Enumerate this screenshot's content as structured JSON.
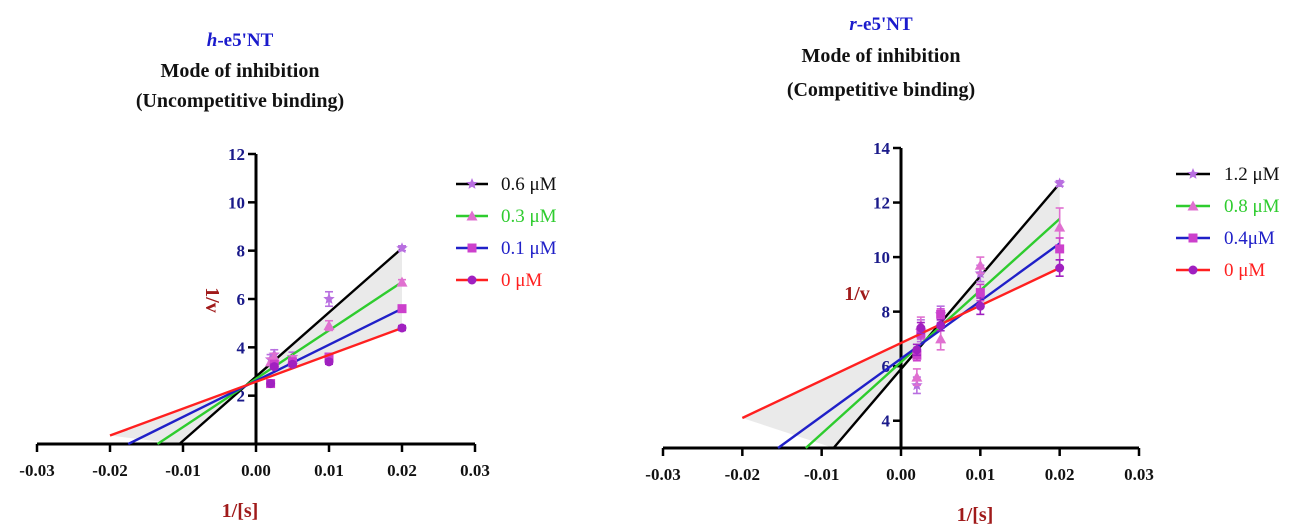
{
  "chart_data": [
    {
      "type": "line",
      "title_prefix": "h",
      "title_suffix": "-e5'NT",
      "subtitle": "Mode of inhibition",
      "subtitle2": "(Uncompetitive binding)",
      "xlabel": "1/[s]",
      "ylabel": "1/v",
      "xlim": [
        -0.03,
        0.03
      ],
      "ylim": [
        0,
        12
      ],
      "xticks": [
        "-0.03",
        "-0.02",
        "-0.01",
        "0.00",
        "0.01",
        "0.02",
        "0.03"
      ],
      "yticks": [
        "2",
        "4",
        "6",
        "8",
        "10",
        "12"
      ],
      "legend_position": "right",
      "series": [
        {
          "name": "0.6  μM",
          "color": "#000000",
          "marker_color": "#b86fe0",
          "marker": "star",
          "line": [
            [
              -0.0105,
              0.0
            ],
            [
              0.02,
              8.1
            ]
          ],
          "points": [
            [
              0.002,
              3.5
            ],
            [
              0.0025,
              3.7
            ],
            [
              0.005,
              3.6
            ],
            [
              0.01,
              6.0
            ],
            [
              0.02,
              8.1
            ]
          ],
          "errors": [
            0.2,
            0.2,
            0.2,
            0.3,
            0.1
          ]
        },
        {
          "name": "0.3  μM",
          "color": "#2ecc2e",
          "marker_color": "#e070d0",
          "marker": "triangle",
          "line": [
            [
              -0.0135,
              0.0
            ],
            [
              0.02,
              6.7
            ]
          ],
          "points": [
            [
              0.002,
              3.4
            ],
            [
              0.0025,
              3.6
            ],
            [
              0.005,
              3.5
            ],
            [
              0.01,
              4.9
            ],
            [
              0.02,
              6.7
            ]
          ],
          "errors": [
            0.15,
            0.15,
            0.15,
            0.2,
            0.1
          ]
        },
        {
          "name": "0.1 μM",
          "color": "#2020c8",
          "marker_color": "#cc40cc",
          "marker": "square",
          "line": [
            [
              -0.0175,
              0.0
            ],
            [
              0.02,
              5.6
            ]
          ],
          "points": [
            [
              0.002,
              2.5
            ],
            [
              0.0025,
              3.3
            ],
            [
              0.005,
              3.4
            ],
            [
              0.01,
              3.6
            ],
            [
              0.02,
              5.6
            ]
          ],
          "errors": [
            0.15,
            0.15,
            0.15,
            0.15,
            0.1
          ]
        },
        {
          "name": "0 μM",
          "color": "#ff2020",
          "marker_color": "#a020c0",
          "marker": "circle",
          "line": [
            [
              -0.02,
              0.35
            ],
            [
              0.02,
              4.8
            ]
          ],
          "points": [
            [
              0.002,
              2.5
            ],
            [
              0.0025,
              3.2
            ],
            [
              0.005,
              3.3
            ],
            [
              0.01,
              3.4
            ],
            [
              0.02,
              4.8
            ]
          ],
          "errors": [
            0.1,
            0.1,
            0.1,
            0.1,
            0.1
          ]
        }
      ]
    },
    {
      "type": "line",
      "title_prefix": "r",
      "title_suffix": "-e5'NT",
      "subtitle": "Mode of inhibition",
      "subtitle2": "(Competitive binding)",
      "xlabel": "1/[s]",
      "ylabel": "1/v",
      "xlim": [
        -0.03,
        0.03
      ],
      "ylim": [
        3,
        14
      ],
      "xticks": [
        "-0.03",
        "-0.02",
        "-0.01",
        "0.00",
        "0.01",
        "0.02",
        "0.03"
      ],
      "yticks": [
        "4",
        "6",
        "8",
        "10",
        "12",
        "14"
      ],
      "legend_position": "right",
      "series": [
        {
          "name": "1.2 μM",
          "color": "#000000",
          "marker_color": "#b86fe0",
          "marker": "star",
          "line": [
            [
              -0.0085,
              3.0
            ],
            [
              0.02,
              12.7
            ]
          ],
          "points": [
            [
              0.002,
              5.3
            ],
            [
              0.0025,
              7.3
            ],
            [
              0.005,
              7.9
            ],
            [
              0.01,
              9.4
            ],
            [
              0.02,
              12.7
            ]
          ],
          "errors": [
            0.3,
            0.4,
            0.3,
            0.3,
            0.1
          ]
        },
        {
          "name": "0.8 μM",
          "color": "#2ecc2e",
          "marker_color": "#e070d0",
          "marker": "triangle",
          "line": [
            [
              -0.012,
              3.0
            ],
            [
              0.02,
              11.4
            ]
          ],
          "points": [
            [
              0.002,
              5.6
            ],
            [
              0.0025,
              7.5
            ],
            [
              0.005,
              7.0
            ],
            [
              0.01,
              9.7
            ],
            [
              0.02,
              11.1
            ]
          ],
          "errors": [
            0.3,
            0.3,
            0.4,
            0.3,
            0.7
          ]
        },
        {
          "name": "0.4μM",
          "color": "#2020c8",
          "marker_color": "#cc40cc",
          "marker": "square",
          "line": [
            [
              -0.0155,
              3.0
            ],
            [
              0.02,
              10.5
            ]
          ],
          "points": [
            [
              0.002,
              6.4
            ],
            [
              0.0025,
              7.2
            ],
            [
              0.005,
              7.9
            ],
            [
              0.01,
              8.7
            ],
            [
              0.02,
              10.3
            ]
          ],
          "errors": [
            0.2,
            0.2,
            0.2,
            0.3,
            0.4
          ]
        },
        {
          "name": "0 μM",
          "color": "#ff2020",
          "marker_color": "#a020c0",
          "marker": "circle",
          "line": [
            [
              -0.02,
              4.1
            ],
            [
              0.02,
              9.6
            ]
          ],
          "points": [
            [
              0.002,
              6.6
            ],
            [
              0.0025,
              7.4
            ],
            [
              0.005,
              7.5
            ],
            [
              0.01,
              8.2
            ],
            [
              0.02,
              9.6
            ]
          ],
          "errors": [
            0.2,
            0.2,
            0.2,
            0.3,
            0.3
          ]
        }
      ]
    }
  ]
}
